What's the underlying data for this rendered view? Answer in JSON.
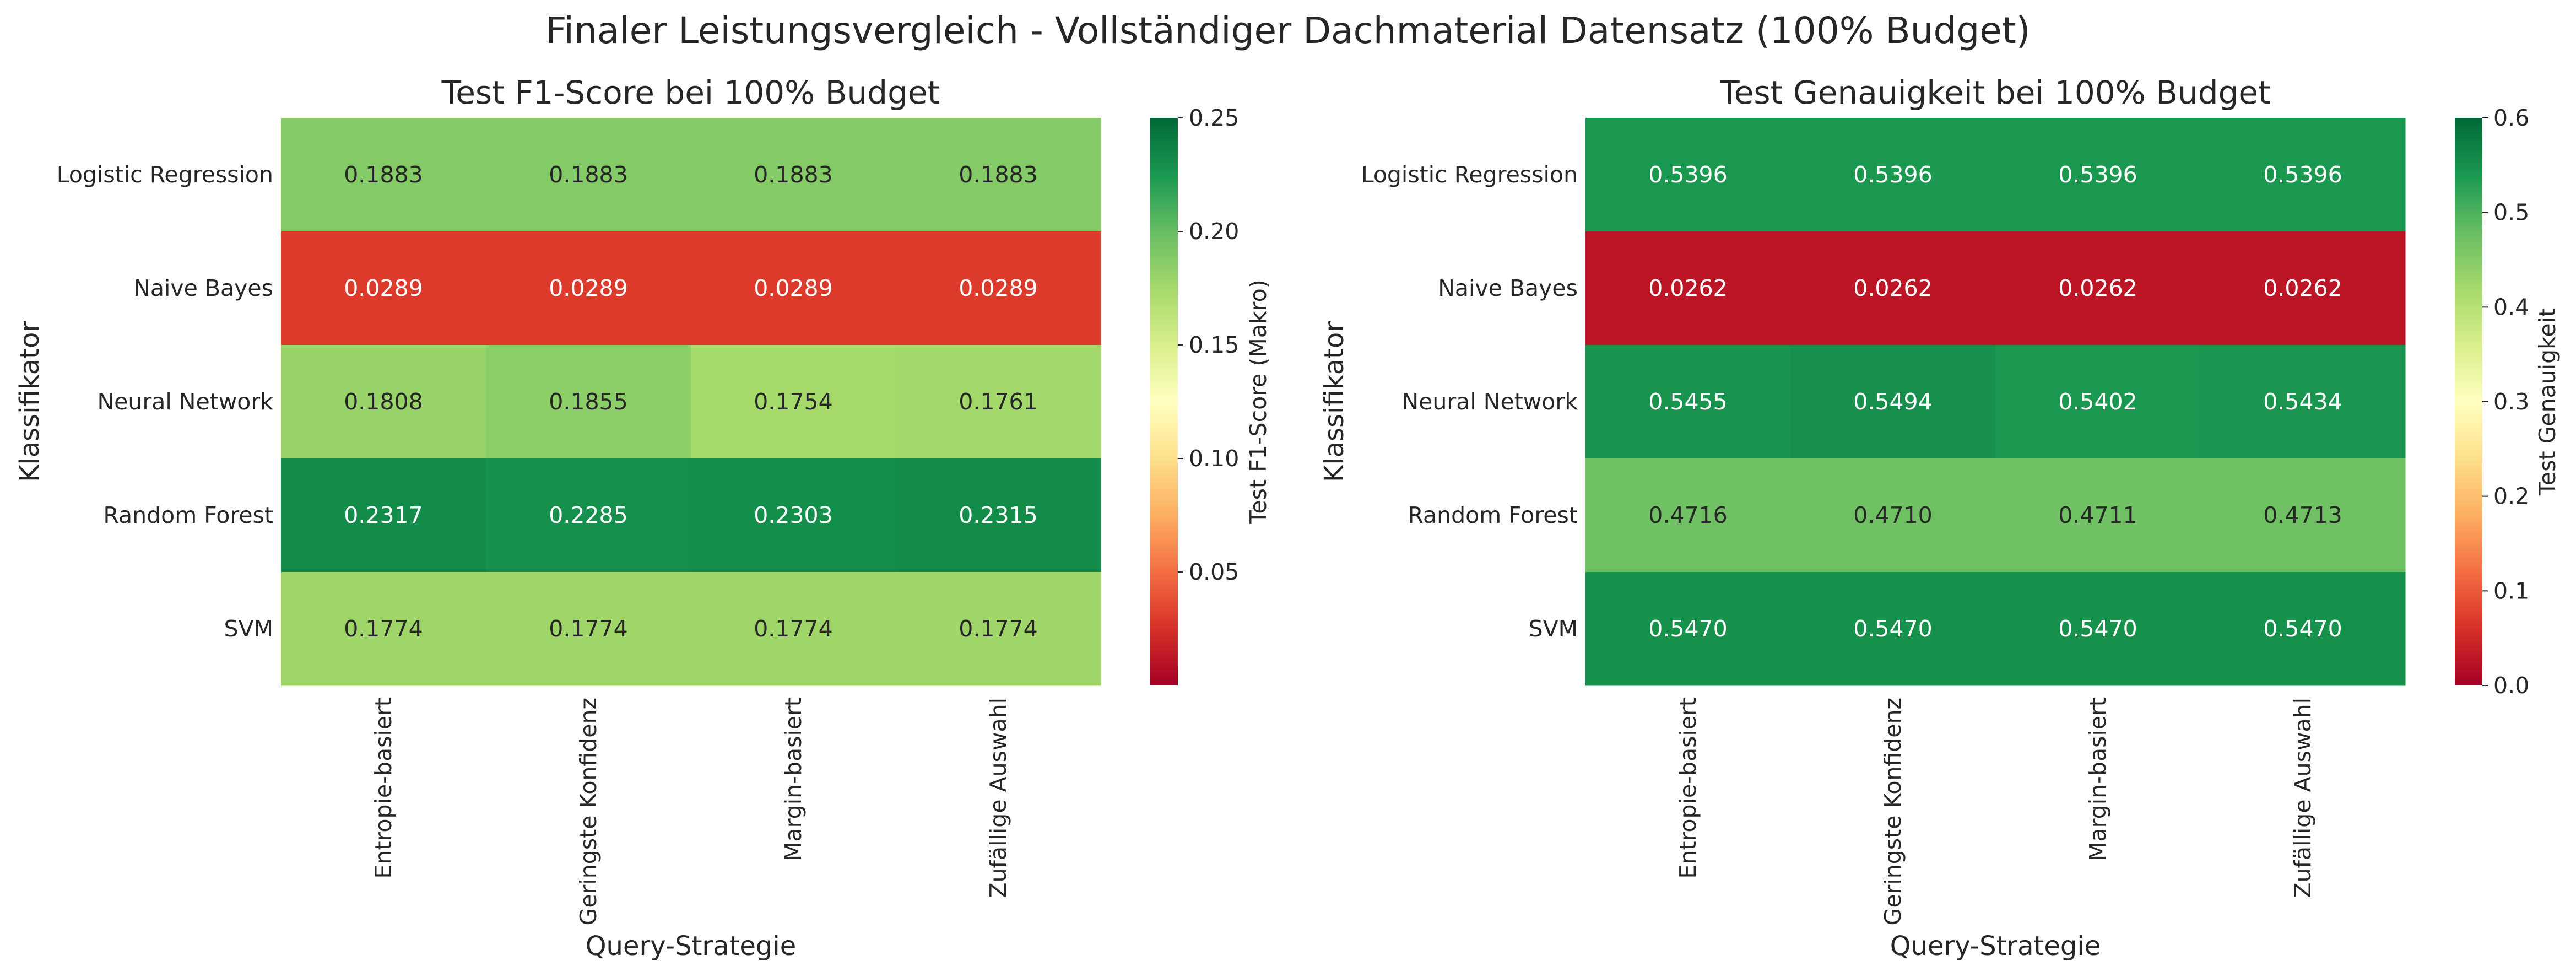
{
  "title": "Finaler Leistungsvergleich - Vollständiger Dachmaterial Datensatz (100% Budget)",
  "colormap": {
    "name": "RdYlGn",
    "low": "#a50026",
    "mid": "#ffffbf",
    "high": "#006837"
  },
  "chart_data": [
    {
      "type": "heatmap",
      "title": "Test F1-Score bei 100% Budget",
      "xlabel": "Query-Strategie",
      "ylabel": "Klassifikator",
      "x_categories": [
        "Entropie-basiert",
        "Geringste Konfidenz",
        "Margin-basiert",
        "Zufällige Auswahl"
      ],
      "y_categories": [
        "Logistic Regression",
        "Naive Bayes",
        "Neural Network",
        "Random Forest",
        "SVM"
      ],
      "values": [
        [
          0.1883,
          0.1883,
          0.1883,
          0.1883
        ],
        [
          0.0289,
          0.0289,
          0.0289,
          0.0289
        ],
        [
          0.1808,
          0.1855,
          0.1754,
          0.1761
        ],
        [
          0.2317,
          0.2285,
          0.2303,
          0.2315
        ],
        [
          0.1774,
          0.1774,
          0.1774,
          0.1774
        ]
      ],
      "value_labels": [
        [
          "0.1883",
          "0.1883",
          "0.1883",
          "0.1883"
        ],
        [
          "0.0289",
          "0.0289",
          "0.0289",
          "0.0289"
        ],
        [
          "0.1808",
          "0.1855",
          "0.1754",
          "0.1761"
        ],
        [
          "0.2317",
          "0.2285",
          "0.2303",
          "0.2315"
        ],
        [
          "0.1774",
          "0.1774",
          "0.1774",
          "0.1774"
        ]
      ],
      "colorbar": {
        "label": "Test F1-Score (Makro)",
        "range": [
          0.0,
          0.25
        ],
        "ticks": [
          0.05,
          0.1,
          0.15,
          0.2,
          0.25
        ],
        "tick_labels": [
          "0.05",
          "0.10",
          "0.15",
          "0.20",
          "0.25"
        ]
      }
    },
    {
      "type": "heatmap",
      "title": "Test Genauigkeit bei 100% Budget",
      "xlabel": "Query-Strategie",
      "ylabel": "Klassifikator",
      "x_categories": [
        "Entropie-basiert",
        "Geringste Konfidenz",
        "Margin-basiert",
        "Zufällige Auswahl"
      ],
      "y_categories": [
        "Logistic Regression",
        "Naive Bayes",
        "Neural Network",
        "Random Forest",
        "SVM"
      ],
      "values": [
        [
          0.5396,
          0.5396,
          0.5396,
          0.5396
        ],
        [
          0.0262,
          0.0262,
          0.0262,
          0.0262
        ],
        [
          0.5455,
          0.5494,
          0.5402,
          0.5434
        ],
        [
          0.4716,
          0.471,
          0.4711,
          0.4713
        ],
        [
          0.547,
          0.547,
          0.547,
          0.547
        ]
      ],
      "value_labels": [
        [
          "0.5396",
          "0.5396",
          "0.5396",
          "0.5396"
        ],
        [
          "0.0262",
          "0.0262",
          "0.0262",
          "0.0262"
        ],
        [
          "0.5455",
          "0.5494",
          "0.5402",
          "0.5434"
        ],
        [
          "0.4716",
          "0.4710",
          "0.4711",
          "0.4713"
        ],
        [
          "0.5470",
          "0.5470",
          "0.5470",
          "0.5470"
        ]
      ],
      "colorbar": {
        "label": "Test Genauigkeit",
        "range": [
          0.0,
          0.6
        ],
        "ticks": [
          0.0,
          0.1,
          0.2,
          0.3,
          0.4,
          0.5,
          0.6
        ],
        "tick_labels": [
          "0.0",
          "0.1",
          "0.2",
          "0.3",
          "0.4",
          "0.5",
          "0.6"
        ]
      }
    }
  ]
}
